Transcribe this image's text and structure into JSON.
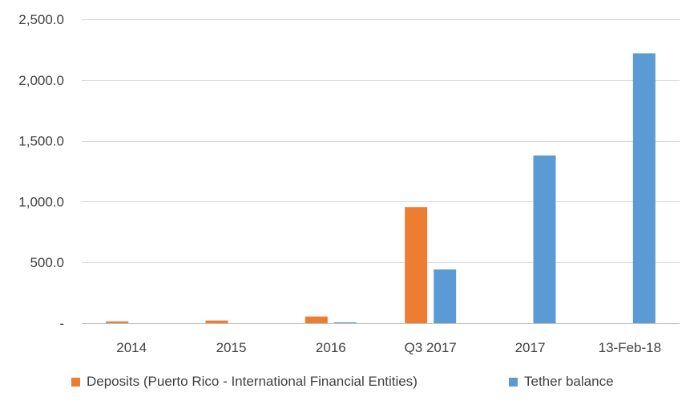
{
  "chart_data": {
    "type": "bar",
    "categories": [
      "2014",
      "2015",
      "2016",
      "Q3 2017",
      "2017",
      "13-Feb-18"
    ],
    "series": [
      {
        "name": "Deposits (Puerto Rico - International Financial Entities)",
        "color": "#ED7D31",
        "values": [
          15,
          22,
          55,
          955,
          0,
          0
        ]
      },
      {
        "name": "Tether balance",
        "color": "#5B9BD5",
        "values": [
          0,
          0,
          7,
          442,
          1380,
          2220
        ]
      }
    ],
    "y_ticks": [
      "-",
      "500.0",
      "1,000.0",
      "1,500.0",
      "2,000.0",
      "2,500.0"
    ],
    "y_tick_values": [
      0,
      500,
      1000,
      1500,
      2000,
      2500
    ],
    "ylim": [
      0,
      2500
    ],
    "grid": true,
    "legend_position": "bottom"
  }
}
